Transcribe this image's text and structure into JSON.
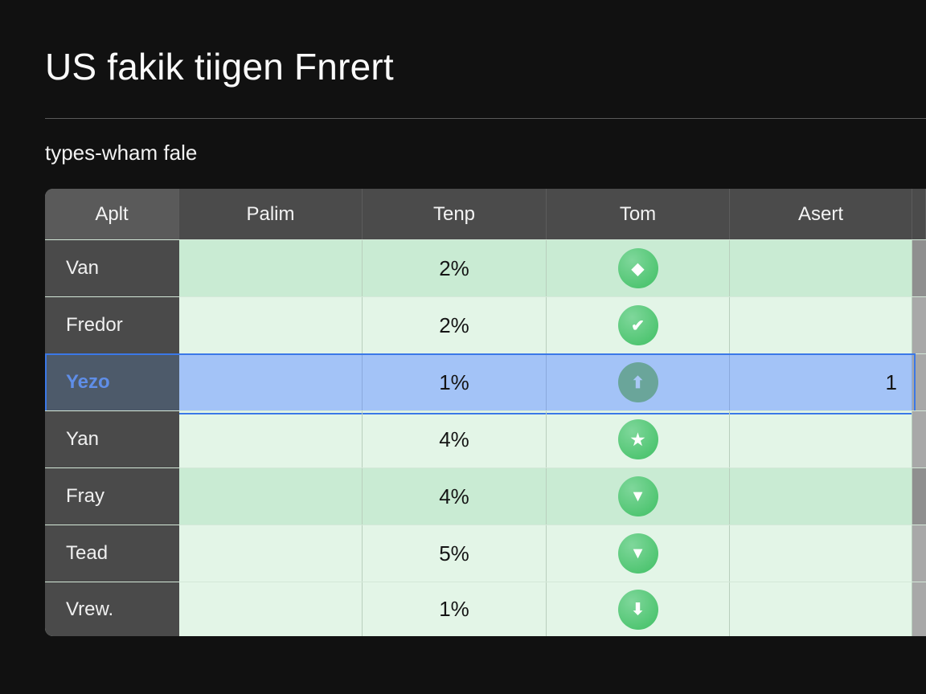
{
  "header": {
    "title": "US fakik tiigen Fnrert",
    "subtitle": "types-wham fale"
  },
  "table": {
    "columns": [
      "Aplt",
      "Palim",
      "Tenp",
      "Tom",
      "Asert"
    ],
    "rows": [
      {
        "name": "Van",
        "palim": "",
        "tenp": "2%",
        "icon": "diamond-icon",
        "glyph": "◆",
        "asert": "",
        "alt": true,
        "selected": false
      },
      {
        "name": "Fredor",
        "palim": "",
        "tenp": "2%",
        "icon": "check-icon",
        "glyph": "✔",
        "asert": "",
        "alt": false,
        "selected": false
      },
      {
        "name": "Yezo",
        "palim": "",
        "tenp": "1%",
        "icon": "arrow-up-icon",
        "glyph": "⬆",
        "asert": "1",
        "alt": false,
        "selected": true
      },
      {
        "name": "Yan",
        "palim": "",
        "tenp": "4%",
        "icon": "star-icon",
        "glyph": "★",
        "asert": "",
        "alt": false,
        "selected": false
      },
      {
        "name": "Fray",
        "palim": "",
        "tenp": "4%",
        "icon": "arrow-down-icon",
        "glyph": "▼",
        "asert": "",
        "alt": true,
        "selected": false
      },
      {
        "name": "Tead",
        "palim": "",
        "tenp": "5%",
        "icon": "arrow-down-icon",
        "glyph": "▼",
        "asert": "",
        "alt": false,
        "selected": false
      },
      {
        "name": "Vrew.",
        "palim": "",
        "tenp": "1%",
        "icon": "arrow-down-icon",
        "glyph": "⬇",
        "asert": "",
        "alt": false,
        "selected": false
      }
    ]
  },
  "colors": {
    "accent": "#3b78e7",
    "selected_row": "#a3c3f7",
    "row_green": "#e3f5e7",
    "row_green_alt": "#c9ebd3",
    "icon_green": "#3fbf63"
  }
}
